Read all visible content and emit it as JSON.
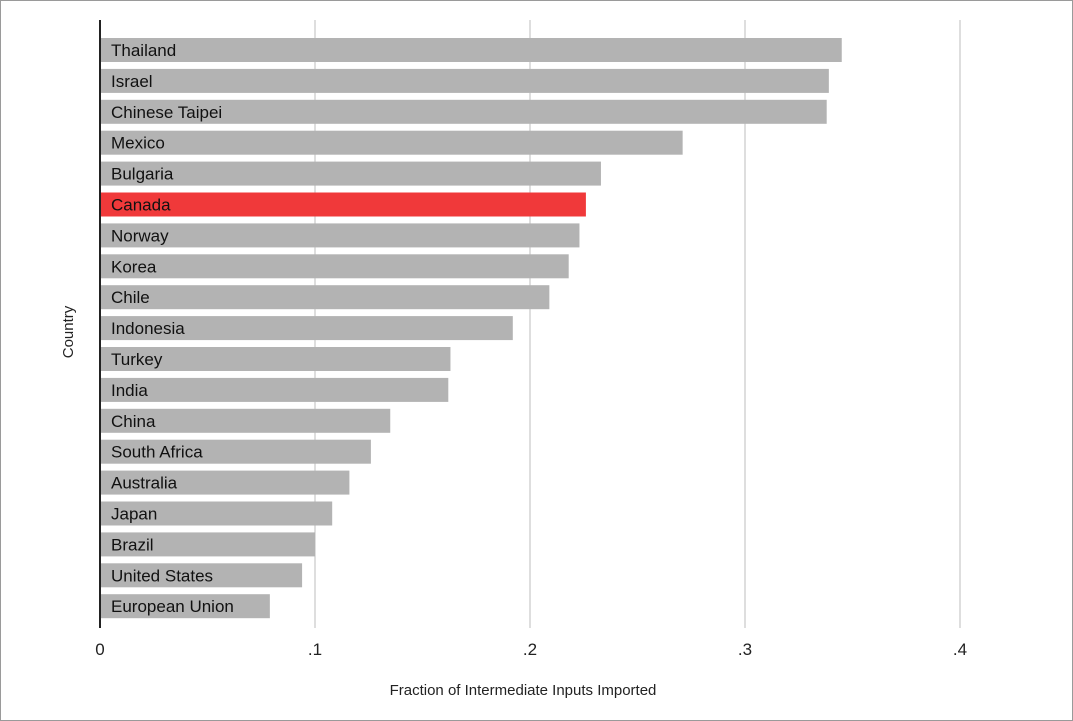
{
  "chart_data": {
    "type": "bar",
    "orientation": "horizontal",
    "xlabel": "Fraction of Intermediate Inputs Imported",
    "ylabel": "Country",
    "xlim": [
      0,
      0.4
    ],
    "xticks": [
      0,
      0.1,
      0.2,
      0.3,
      0.4
    ],
    "xtick_labels": [
      "0",
      ".1",
      ".2",
      ".3",
      ".4"
    ],
    "grid": "vertical",
    "categories": [
      "Thailand",
      "Israel",
      "Chinese Taipei",
      "Mexico",
      "Bulgaria",
      "Canada",
      "Norway",
      "Korea",
      "Chile",
      "Indonesia",
      "Turkey",
      "India",
      "China",
      "South Africa",
      "Australia",
      "Japan",
      "Brazil",
      "United States",
      "European Union"
    ],
    "values": [
      0.345,
      0.339,
      0.338,
      0.271,
      0.233,
      0.226,
      0.223,
      0.218,
      0.209,
      0.192,
      0.163,
      0.162,
      0.135,
      0.126,
      0.116,
      0.108,
      0.1,
      0.094,
      0.079
    ],
    "highlight": "Canada",
    "colors": {
      "bar": "#b3b3b3",
      "highlight": "#f0393a",
      "grid": "#dedede",
      "axis": "#222222"
    }
  }
}
